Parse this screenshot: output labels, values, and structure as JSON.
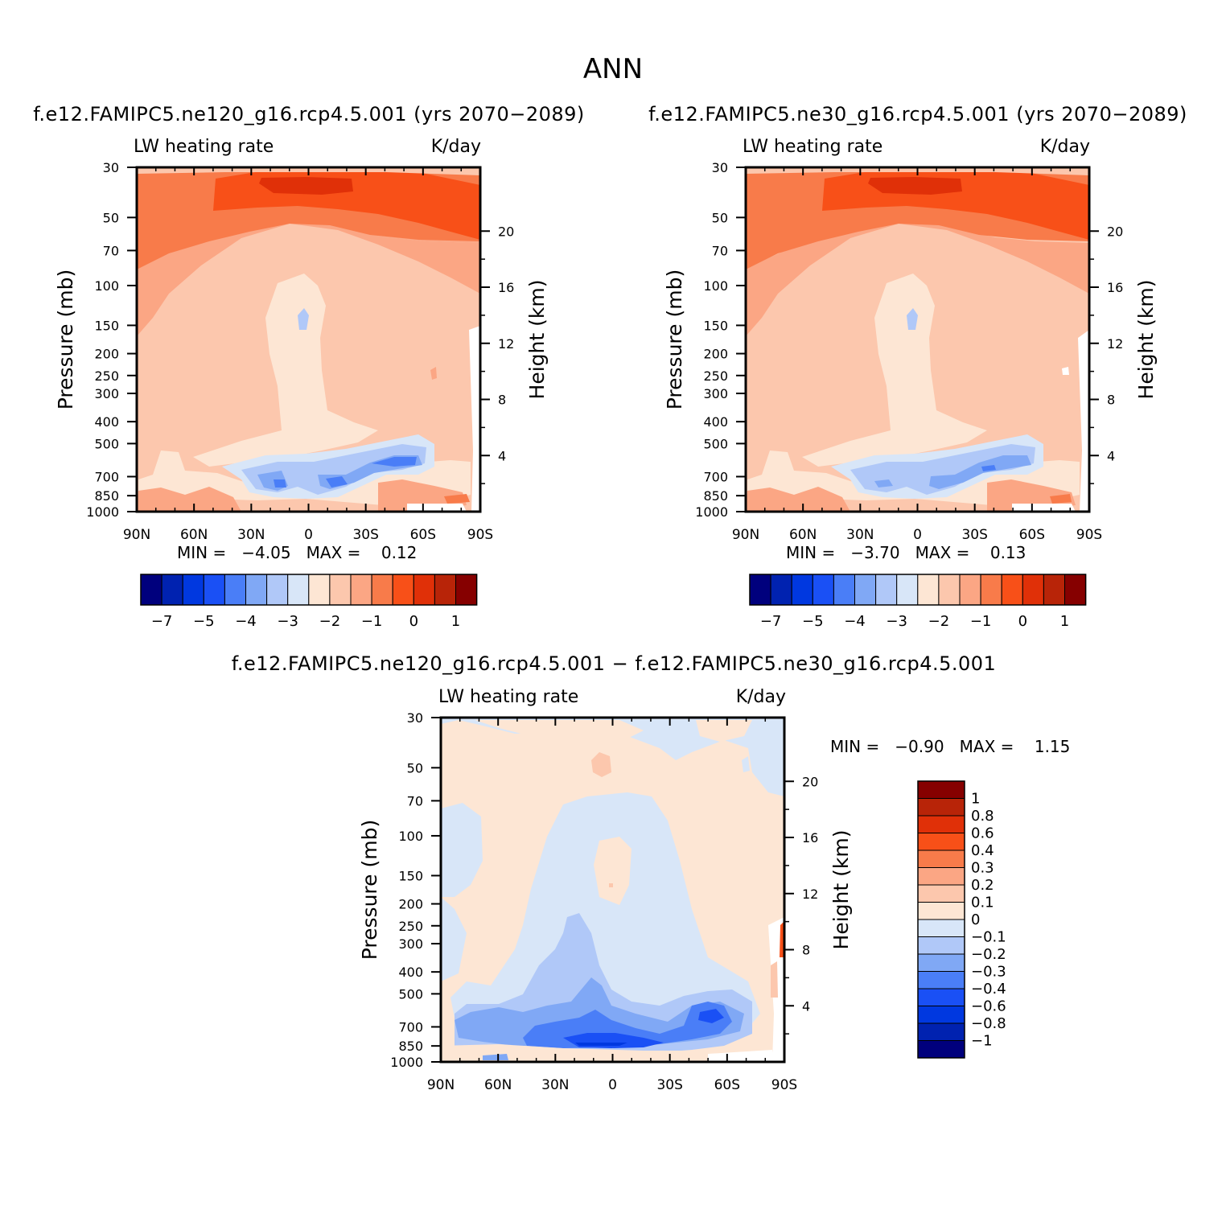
{
  "figure": {
    "title": "ANN"
  },
  "chart_data": [
    {
      "type": "heatmap",
      "title": "f.e12.FAMIPC5.ne120_g16.rcp4.5.001 (yrs 2070−2089)",
      "left_label": "LW heating rate",
      "right_label": "K/day",
      "xlabel": "",
      "ylabel": "Pressure (mb)",
      "y2label": "Height (km)",
      "x_ticks": [
        "90N",
        "60N",
        "30N",
        "0",
        "30S",
        "60S",
        "90S"
      ],
      "y_ticks": [
        "30",
        "50",
        "70",
        "100",
        "150",
        "200",
        "250",
        "300",
        "400",
        "500",
        "700",
        "850",
        "1000"
      ],
      "y2_ticks": [
        "20",
        "16",
        "12",
        "8",
        "4"
      ],
      "stats_text": "MIN =   −4.05   MAX =    0.12",
      "min": -4.05,
      "max": 0.12,
      "colorbar_labels": [
        "−7",
        "−5",
        "−4",
        "−3",
        "−2",
        "−1",
        "0",
        "1"
      ]
    },
    {
      "type": "heatmap",
      "title": "f.e12.FAMIPC5.ne30_g16.rcp4.5.001 (yrs 2070−2089)",
      "left_label": "LW heating rate",
      "right_label": "K/day",
      "xlabel": "",
      "ylabel": "Pressure (mb)",
      "y2label": "Height (km)",
      "x_ticks": [
        "90N",
        "60N",
        "30N",
        "0",
        "30S",
        "60S",
        "90S"
      ],
      "y_ticks": [
        "30",
        "50",
        "70",
        "100",
        "150",
        "200",
        "250",
        "300",
        "400",
        "500",
        "700",
        "850",
        "1000"
      ],
      "y2_ticks": [
        "20",
        "16",
        "12",
        "8",
        "4"
      ],
      "stats_text": "MIN =   −3.70   MAX =    0.13",
      "min": -3.7,
      "max": 0.13,
      "colorbar_labels": [
        "−7",
        "−5",
        "−4",
        "−3",
        "−2",
        "−1",
        "0",
        "1"
      ]
    },
    {
      "type": "heatmap",
      "title": "f.e12.FAMIPC5.ne120_g16.rcp4.5.001 − f.e12.FAMIPC5.ne30_g16.rcp4.5.001",
      "left_label": "LW heating rate",
      "right_label": "K/day",
      "xlabel": "",
      "ylabel": "Pressure (mb)",
      "y2label": "Height (km)",
      "x_ticks": [
        "90N",
        "60N",
        "30N",
        "0",
        "30S",
        "60S",
        "90S"
      ],
      "y_ticks": [
        "30",
        "50",
        "70",
        "100",
        "150",
        "200",
        "250",
        "300",
        "400",
        "500",
        "700",
        "850",
        "1000"
      ],
      "y2_ticks": [
        "20",
        "16",
        "12",
        "8",
        "4"
      ],
      "stats_text": "MIN =   −0.90   MAX =    1.15",
      "min": -0.9,
      "max": 1.15,
      "colorbar_labels": [
        "1",
        "0.8",
        "0.6",
        "0.4",
        "0.3",
        "0.2",
        "0.1",
        "0",
        "−0.1",
        "−0.2",
        "−0.3",
        "−0.4",
        "−0.6",
        "−0.8",
        "−1"
      ]
    }
  ],
  "palette": [
    "#00007d",
    "#0022b0",
    "#0038e0",
    "#1a50f5",
    "#4a7ef7",
    "#80a8f5",
    "#b0c8f8",
    "#d8e6f8",
    "#fde6d4",
    "#fcc7ad",
    "#fba684",
    "#f87b4a",
    "#f85018",
    "#e03008",
    "#b82408",
    "#860000"
  ]
}
